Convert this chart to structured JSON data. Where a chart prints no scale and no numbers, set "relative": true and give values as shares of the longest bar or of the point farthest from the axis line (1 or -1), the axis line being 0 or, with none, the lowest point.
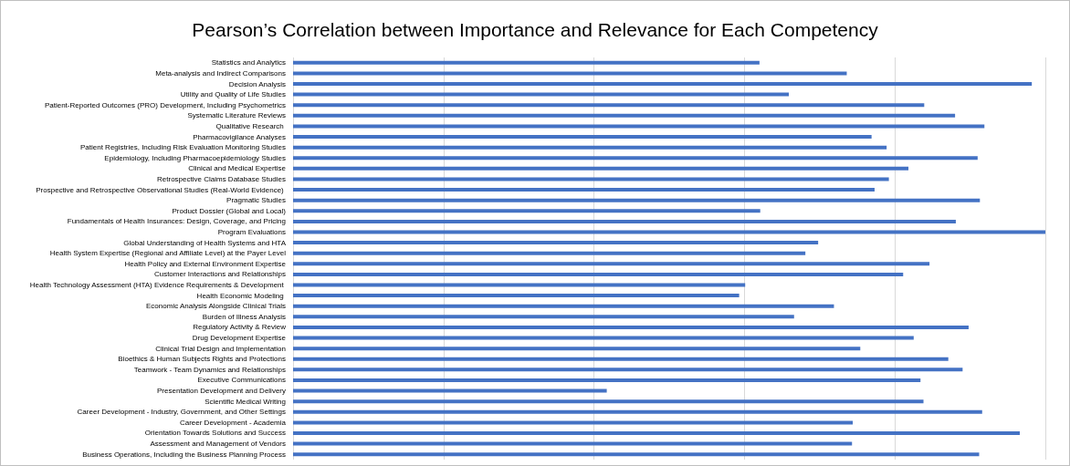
{
  "chart_data": {
    "type": "bar",
    "orientation": "horizontal",
    "relative": true,
    "grid": "x",
    "color": "#4472c4",
    "title": "Pearson’s Correlation between Importance and Relevance for Each Competency",
    "categories": [
      "Statistics and Analytics",
      "Meta-analysis and Indirect Comparisons",
      "Decision Analysis",
      "Utility and Quality of Life Studies",
      "Patient-Reported Outcomes (PRO) Development, Including Psychometrics",
      "Systematic Literature Reviews",
      "Qualitative Research ",
      "Pharmacovigilance Analyses",
      "Patient Registries, Including Risk Evaluation Monitoring Studies",
      "Epidemiology, Including Pharmacoepidemiology Studies",
      "Clinical and Medical Expertise",
      "Retrospective Claims Database Studies",
      "Prospective and Retrospective Observational Studies (Real-World Evidence) ",
      "Pragmatic Studies",
      "Product Dossier (Global and Local)",
      "Fundamentals of Health Insurances: Design, Coverage, and Pricing",
      "Program Evaluations",
      "Global Understanding of Health Systems and HTA",
      "Health System Expertise (Regional and Affiliate Level) at the Payer Level",
      "Health Policy and External Environment Expertise",
      "Customer Interactions and Relationships",
      "Health Technology Assessment (HTA) Evidence Requirements & Development ",
      "Health Economic Modeling ",
      "Economic Analysis Alongside Clinical Trials",
      "Burden of Illness Analysis",
      "Regulatory Activity & Review",
      "Drug Development Expertise",
      "Clinical Trial Design and Implementation",
      "Bioethics & Human Subjects Rights and Protections",
      "Teamwork - Team Dynamics and Relationships",
      "Executive Communications",
      "Presentation Development and Delivery",
      "Scientific Medical Writing",
      "Career Development - Industry, Government, and Other Settings",
      "Career Development - Academia",
      "Orientation Towards Solutions and Success",
      "Assessment and Management of Vendors",
      "Business Operations, Including the Business Planning Process"
    ],
    "values": [
      0.62,
      0.736,
      0.982,
      0.659,
      0.839,
      0.88,
      0.919,
      0.769,
      0.789,
      0.91,
      0.818,
      0.792,
      0.773,
      0.913,
      0.621,
      0.881,
      1,
      0.698,
      0.681,
      0.846,
      0.811,
      0.601,
      0.593,
      0.719,
      0.666,
      0.898,
      0.825,
      0.754,
      0.871,
      0.89,
      0.834,
      0.417,
      0.838,
      0.916,
      0.744,
      0.966,
      0.743,
      0.912
    ]
  }
}
